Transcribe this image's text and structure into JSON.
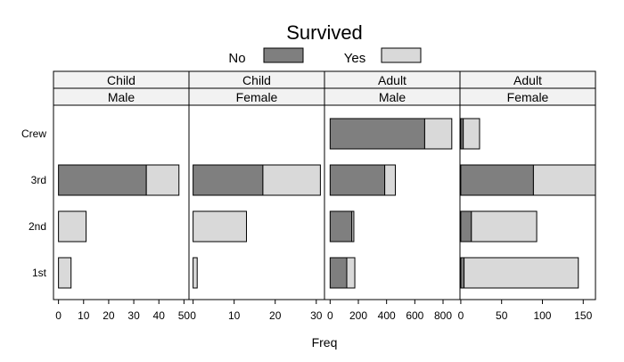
{
  "chart_data": {
    "type": "bar",
    "orientation": "horizontal",
    "stacked": true,
    "title": "Survived",
    "xlabel": "Freq",
    "ylabel": "",
    "legend": {
      "placement": "top",
      "entries": [
        {
          "name": "No",
          "color": "#7f7f7f"
        },
        {
          "name": "Yes",
          "color": "#d9d9d9"
        }
      ]
    },
    "categories": [
      "Crew",
      "3rd",
      "2nd",
      "1st"
    ],
    "panels": [
      {
        "strip": [
          "Child",
          "Male"
        ],
        "xlim": [
          -2,
          52
        ],
        "ticks": [
          0,
          10,
          20,
          30,
          40,
          50
        ],
        "series": [
          {
            "name": "No",
            "values": [
              0,
              35,
              0,
              0
            ]
          },
          {
            "name": "Yes",
            "values": [
              0,
              13,
              11,
              5
            ]
          }
        ]
      },
      {
        "strip": [
          "Child",
          "Female"
        ],
        "xlim": [
          -1,
          32
        ],
        "ticks": [
          0,
          10,
          20,
          30
        ],
        "series": [
          {
            "name": "No",
            "values": [
              0,
              17,
              0,
              0
            ]
          },
          {
            "name": "Yes",
            "values": [
              0,
              14,
              13,
              1
            ]
          }
        ]
      },
      {
        "strip": [
          "Adult",
          "Male"
        ],
        "xlim": [
          -40,
          920
        ],
        "ticks": [
          0,
          200,
          400,
          600,
          800
        ],
        "series": [
          {
            "name": "No",
            "values": [
              670,
              387,
              154,
              118
            ]
          },
          {
            "name": "Yes",
            "values": [
              192,
              75,
              14,
              57
            ]
          }
        ]
      },
      {
        "strip": [
          "Adult",
          "Female"
        ],
        "xlim": [
          -1,
          165
        ],
        "ticks": [
          0,
          50,
          100,
          150
        ],
        "series": [
          {
            "name": "No",
            "values": [
              3,
              89,
              13,
              4
            ]
          },
          {
            "name": "Yes",
            "values": [
              20,
              76,
              80,
              140
            ]
          }
        ]
      }
    ],
    "grid": false
  }
}
